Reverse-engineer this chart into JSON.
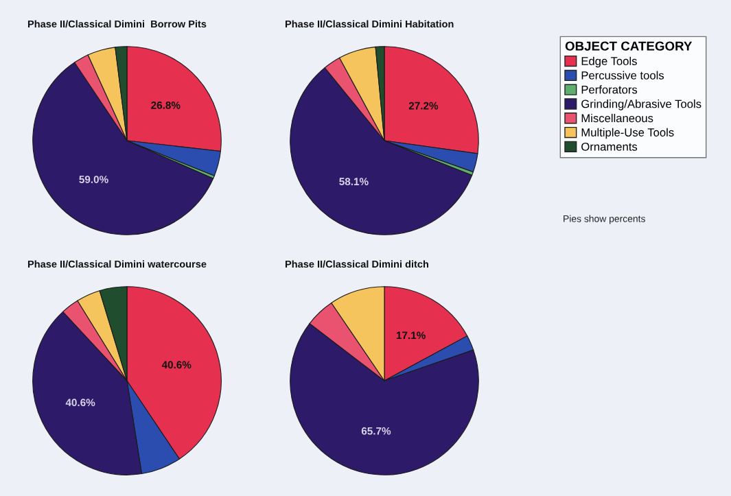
{
  "chart_data": [
    {
      "type": "pie",
      "title": "Phase II/Classical Dimini  Borrow Pits",
      "categories": [
        "Edge Tools",
        "Percussive tools",
        "Perforators",
        "Grinding/Abrasive Tools",
        "Miscellaneous",
        "Multiple-Use Tools",
        "Ornaments"
      ],
      "values": [
        26.8,
        4.3,
        0.5,
        59.0,
        2.6,
        4.8,
        2.0
      ],
      "colors": [
        "#e6304f",
        "#2b4db0",
        "#5fae6e",
        "#2d1a68",
        "#e9536f",
        "#f5c45c",
        "#1f4d2d"
      ],
      "value_labels": [
        "26.8%",
        null,
        null,
        "59.0%",
        null,
        null,
        null
      ],
      "legend": "top right",
      "legend_title": "OBJECT CATEGORY",
      "annotations": [
        "Pies show percents"
      ]
    },
    {
      "type": "pie",
      "title": "Phase II/Classical Dimini Habitation",
      "values": [
        27.2,
        3.2,
        0.6,
        58.1,
        3.0,
        6.4,
        1.5
      ],
      "colors": [
        "#e6304f",
        "#2b4db0",
        "#5fae6e",
        "#2d1a68",
        "#e9536f",
        "#f5c45c",
        "#1f4d2d"
      ],
      "value_labels": [
        "27.2%",
        null,
        null,
        "58.1%",
        null,
        null,
        null
      ]
    },
    {
      "type": "pie",
      "title": "Phase II/Classical Dimini watercourse",
      "values": [
        40.6,
        6.9,
        null,
        40.6,
        3.1,
        4.1,
        4.7
      ],
      "colors": [
        "#e6304f",
        "#2b4db0",
        "#5fae6e",
        "#2d1a68",
        "#e9536f",
        "#f5c45c",
        "#1f4d2d"
      ],
      "value_labels": [
        "40.6%",
        null,
        null,
        "40.6%",
        null,
        null,
        null
      ]
    },
    {
      "type": "pie",
      "title": "Phase II/Classical Dimini ditch",
      "values": [
        17.1,
        2.6,
        null,
        65.7,
        5.1,
        9.5,
        null
      ],
      "colors": [
        "#e6304f",
        "#2b4db0",
        "#5fae6e",
        "#2d1a68",
        "#e9536f",
        "#f5c45c",
        "#1f4d2d"
      ],
      "value_labels": [
        "17.1%",
        null,
        null,
        "65.7%",
        null,
        null,
        null
      ]
    }
  ]
}
